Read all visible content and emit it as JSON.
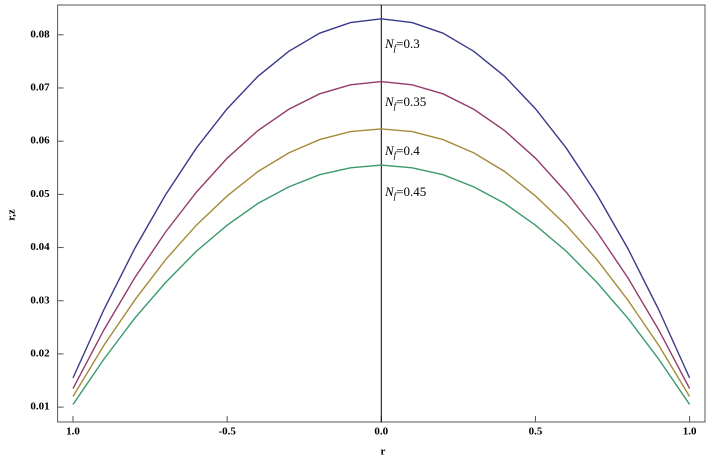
{
  "chart_data": {
    "type": "line",
    "xlabel": "r",
    "ylabel": "r,z",
    "x": [
      -1,
      -0.9,
      -0.8,
      -0.7,
      -0.6,
      -0.5,
      -0.4,
      -0.3,
      -0.2,
      -0.1,
      0,
      0.1,
      0.2,
      0.3,
      0.4,
      0.5,
      0.6,
      0.7,
      0.8,
      0.9,
      1
    ],
    "series": [
      {
        "label": [
          "N",
          "f",
          "=0.3"
        ],
        "color": "#3a3a8c",
        "values": [
          0.0155,
          0.0283,
          0.0398,
          0.0499,
          0.0587,
          0.0661,
          0.0722,
          0.0769,
          0.0803,
          0.0823,
          0.083,
          0.0823,
          0.0803,
          0.0769,
          0.0722,
          0.0661,
          0.0587,
          0.0499,
          0.0398,
          0.0283,
          0.0155
        ]
      },
      {
        "label": [
          "N",
          "f",
          "=0.35"
        ],
        "color": "#953b6c",
        "values": [
          0.0135,
          0.0245,
          0.0343,
          0.0429,
          0.0504,
          0.0568,
          0.062,
          0.066,
          0.0689,
          0.0706,
          0.0712,
          0.0706,
          0.0689,
          0.066,
          0.062,
          0.0568,
          0.0504,
          0.0429,
          0.0343,
          0.0245,
          0.0135
        ]
      },
      {
        "label": [
          "N",
          "f",
          "=0.4"
        ],
        "color": "#a58a38",
        "values": [
          0.012,
          0.0216,
          0.0301,
          0.0377,
          0.0442,
          0.0497,
          0.0543,
          0.0578,
          0.0603,
          0.0618,
          0.0623,
          0.0618,
          0.0603,
          0.0578,
          0.0543,
          0.0497,
          0.0442,
          0.0377,
          0.0301,
          0.0216,
          0.012
        ]
      },
      {
        "label": [
          "N",
          "f",
          "=0.45"
        ],
        "color": "#3a9a6a",
        "values": [
          0.0105,
          0.019,
          0.0267,
          0.0334,
          0.0393,
          0.0442,
          0.0483,
          0.0514,
          0.0537,
          0.055,
          0.0555,
          0.055,
          0.0537,
          0.0514,
          0.0483,
          0.0442,
          0.0393,
          0.0334,
          0.0267,
          0.019,
          0.0105
        ]
      }
    ],
    "xlim": [
      -1.05,
      1.05
    ],
    "ylim": [
      0.0072,
      0.0856
    ],
    "xticks": [
      {
        "value": -1,
        "label": "1.0"
      },
      -0.5,
      {
        "value": 0,
        "label": "0.0"
      },
      0.5,
      {
        "value": 1,
        "label": "1.0"
      }
    ],
    "yticks": [
      0.01,
      0.02,
      0.03,
      0.04,
      0.05,
      0.06,
      0.07,
      0.08
    ],
    "grid": false
  }
}
